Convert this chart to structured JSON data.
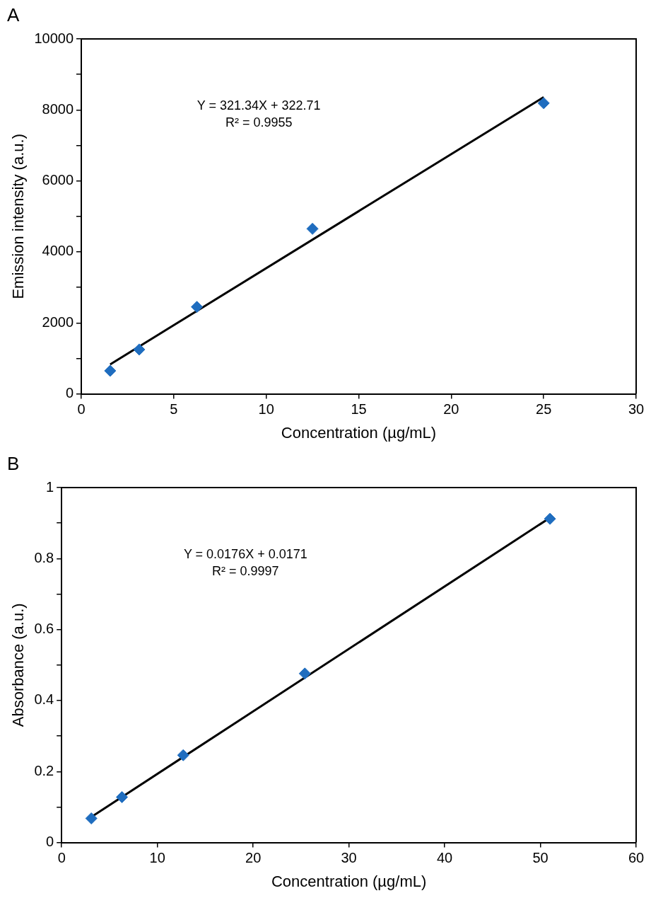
{
  "chart_data": [
    {
      "type": "scatter",
      "title": "A",
      "xlabel": "Concentration (µg/mL)",
      "ylabel": "Emission intensity (a.u.)",
      "xlim": [
        0,
        30
      ],
      "xticks": [
        0,
        5,
        10,
        15,
        20,
        25,
        30
      ],
      "ylim": [
        0,
        10000
      ],
      "yticks": [
        0,
        {
          "value": 1000,
          "label": null
        },
        2000,
        {
          "value": 3000,
          "label": null
        },
        4000,
        {
          "value": 5000,
          "label": null
        },
        6000,
        {
          "value": 7000,
          "label": null
        },
        8000,
        {
          "value": 9000,
          "label": null
        },
        10000
      ],
      "grid": false,
      "legend": false,
      "annotations": [
        "Y = 321.34X + 322.71",
        "R² = 0.9955"
      ],
      "series": [
        {
          "type": "scatter",
          "color": "#1f6dbf",
          "marker": "diamond",
          "x": [
            1.56,
            3.13,
            6.25,
            12.5,
            25
          ],
          "values": [
            650,
            1250,
            2450,
            4650,
            8190
          ]
        },
        {
          "type": "line",
          "color": "#000000",
          "marker": "none",
          "line_style": "solid",
          "x": [
            1.56,
            25
          ],
          "values": [
            830,
            8360
          ]
        }
      ]
    },
    {
      "type": "scatter",
      "title": "B",
      "xlabel": "Concentration (µg/mL)",
      "ylabel": "Absorbance (a.u.)",
      "xlim": [
        0,
        60
      ],
      "xticks": [
        0,
        10,
        20,
        30,
        40,
        50,
        60
      ],
      "ylim": [
        0,
        1
      ],
      "yticks": [
        0,
        {
          "value": 0.1,
          "label": null
        },
        0.2,
        {
          "value": 0.3,
          "label": null
        },
        0.4,
        {
          "value": 0.5,
          "label": null
        },
        0.6,
        {
          "value": 0.7,
          "label": null
        },
        0.8,
        {
          "value": 0.9,
          "label": null
        },
        1
      ],
      "grid": false,
      "legend": false,
      "annotations": [
        "Y = 0.0176X + 0.0171",
        "R² = 0.9997"
      ],
      "series": [
        {
          "type": "scatter",
          "color": "#1f6dbf",
          "marker": "diamond",
          "x": [
            3.1,
            6.3,
            12.7,
            25.4,
            51
          ],
          "values": [
            0.068,
            0.128,
            0.246,
            0.476,
            0.912
          ]
        },
        {
          "type": "line",
          "color": "#000000",
          "marker": "none",
          "line_style": "solid",
          "x": [
            3.1,
            51
          ],
          "values": [
            0.072,
            0.915
          ]
        }
      ]
    }
  ]
}
